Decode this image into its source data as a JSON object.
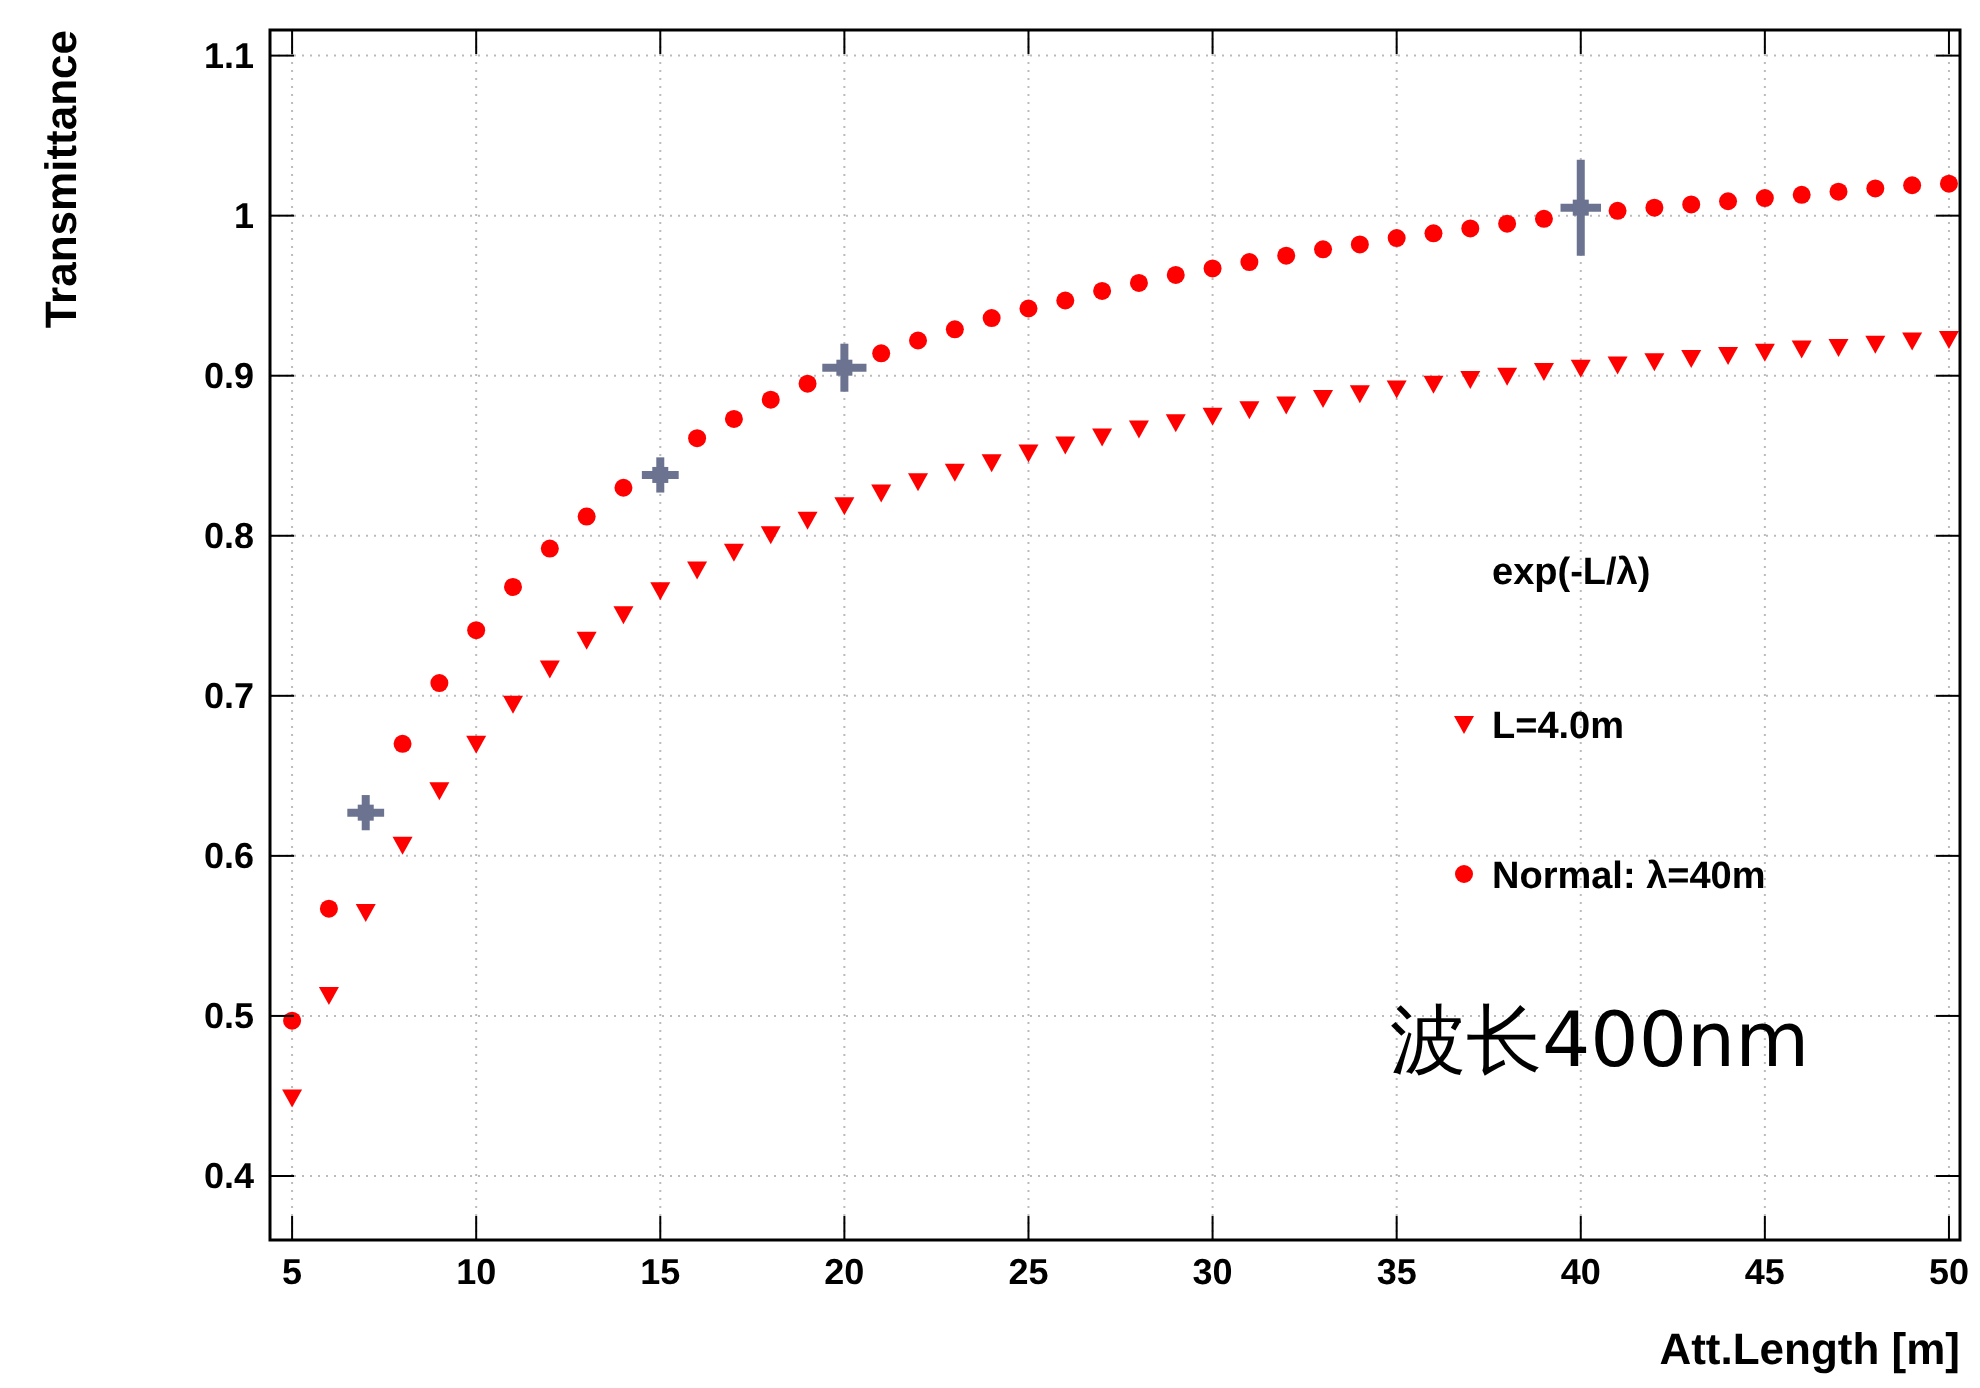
{
  "chart_data": {
    "type": "scatter",
    "xlabel": "Att.Length [m]",
    "ylabel": "Transmittance",
    "legend_title": "exp(-L/λ)",
    "legend": "right",
    "grid": true,
    "xlim": [
      4.4,
      50.3
    ],
    "ylim": [
      0.36,
      1.116
    ],
    "xticks": [
      5,
      10,
      15,
      20,
      25,
      30,
      35,
      40,
      45,
      50
    ],
    "yticks": [
      0.4,
      0.5,
      0.6,
      0.7,
      0.8,
      0.9,
      1,
      1.1
    ],
    "annotations": [
      "波长400nm"
    ],
    "series": [
      {
        "name": "L=4.0m",
        "color": "#ff0000",
        "marker": "triangle",
        "x": [
          5,
          6,
          7,
          8,
          9,
          10,
          11,
          12,
          13,
          14,
          15,
          16,
          17,
          18,
          19,
          20,
          21,
          22,
          23,
          24,
          25,
          26,
          27,
          28,
          29,
          30,
          31,
          32,
          33,
          34,
          35,
          36,
          37,
          38,
          39,
          40,
          41,
          42,
          43,
          44,
          45,
          46,
          47,
          48,
          49,
          50
        ],
        "values": [
          0.449,
          0.513,
          0.565,
          0.607,
          0.641,
          0.67,
          0.695,
          0.717,
          0.735,
          0.751,
          0.766,
          0.779,
          0.79,
          0.801,
          0.81,
          0.819,
          0.827,
          0.834,
          0.84,
          0.846,
          0.852,
          0.857,
          0.862,
          0.867,
          0.871,
          0.875,
          0.879,
          0.882,
          0.886,
          0.889,
          0.892,
          0.895,
          0.898,
          0.9,
          0.903,
          0.905,
          0.907,
          0.909,
          0.911,
          0.913,
          0.915,
          0.917,
          0.918,
          0.92,
          0.922,
          0.923
        ]
      },
      {
        "name": "Normal: λ=40m",
        "color": "#ff0000",
        "marker": "circle",
        "x": [
          5,
          6,
          8,
          9,
          10,
          11,
          12,
          13,
          14,
          16,
          17,
          18,
          19,
          21,
          22,
          23,
          24,
          25,
          26,
          27,
          28,
          29,
          30,
          31,
          32,
          33,
          34,
          35,
          36,
          37,
          38,
          39,
          41,
          42,
          43,
          44,
          45,
          46,
          47,
          48,
          49,
          50
        ],
        "values": [
          0.497,
          0.567,
          0.67,
          0.708,
          0.741,
          0.768,
          0.792,
          0.812,
          0.83,
          0.861,
          0.873,
          0.885,
          0.895,
          0.914,
          0.922,
          0.929,
          0.936,
          0.942,
          0.947,
          0.953,
          0.958,
          0.963,
          0.967,
          0.971,
          0.975,
          0.979,
          0.982,
          0.986,
          0.989,
          0.992,
          0.995,
          0.998,
          1.003,
          1.005,
          1.007,
          1.009,
          1.011,
          1.013,
          1.015,
          1.017,
          1.019,
          1.02
        ]
      },
      {
        "color": "#6b7391",
        "marker": "square",
        "x": [
          7,
          15,
          20,
          40
        ],
        "values": [
          0.627,
          0.838,
          0.905,
          1.005
        ],
        "errors": [
          0.011,
          0.011,
          0.015,
          0.03
        ],
        "xerrors": [
          0.5,
          0.5,
          0.6,
          0.55
        ]
      }
    ]
  }
}
